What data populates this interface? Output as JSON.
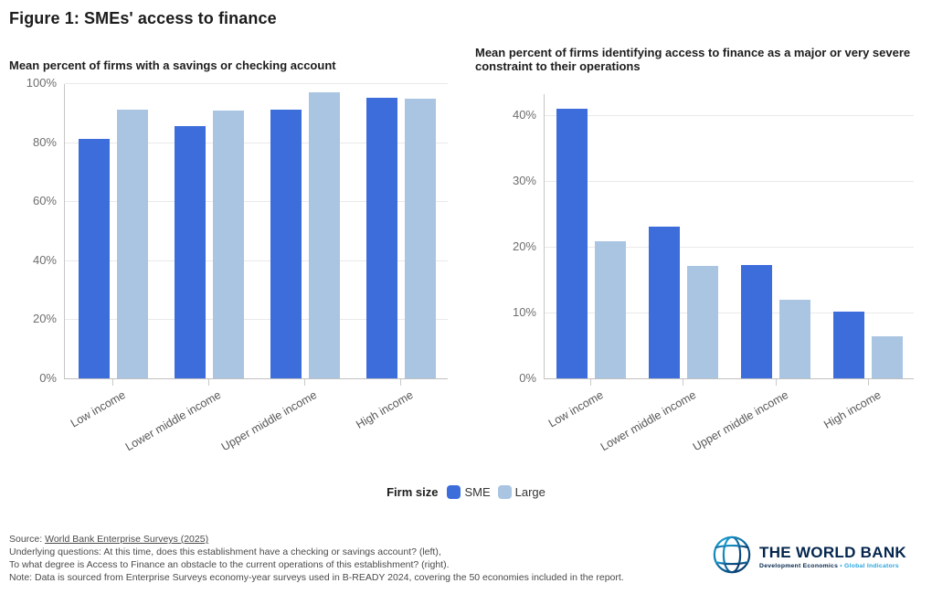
{
  "page": {
    "title": "Figure 1: SMEs' access to finance"
  },
  "legend": {
    "label": "Firm size",
    "items": [
      {
        "name": "SME",
        "color": "#3d6ddb"
      },
      {
        "name": "Large",
        "color": "#a9c5e2"
      }
    ]
  },
  "chart_data": [
    {
      "type": "bar",
      "title": "Mean percent of firms with a savings or checking account",
      "categories": [
        "Low income",
        "Lower middle income",
        "Upper middle income",
        "High income"
      ],
      "series": [
        {
          "name": "SME",
          "color": "#3d6ddb",
          "values": [
            81,
            85.5,
            91,
            95
          ]
        },
        {
          "name": "Large",
          "color": "#a9c5e2",
          "values": [
            91,
            90.8,
            96.8,
            94.7
          ]
        }
      ],
      "xlabel": "",
      "ylabel": "",
      "yticks": [
        0,
        20,
        40,
        60,
        80,
        100
      ],
      "ytick_suffix": "%",
      "ylim": [
        0,
        100
      ],
      "grid": true,
      "legend_position": "bottom"
    },
    {
      "type": "bar",
      "title": "Mean percent of firms identifying access to finance as a major or very severe constraint to their operations",
      "categories": [
        "Low income",
        "Lower middle income",
        "Upper middle income",
        "High income"
      ],
      "series": [
        {
          "name": "SME",
          "color": "#3d6ddb",
          "values": [
            41,
            23,
            17.2,
            10.1
          ]
        },
        {
          "name": "Large",
          "color": "#a9c5e2",
          "values": [
            20.8,
            17.1,
            11.9,
            6.4
          ]
        }
      ],
      "xlabel": "",
      "ylabel": "",
      "yticks": [
        0,
        10,
        20,
        30,
        40
      ],
      "ytick_suffix": "%",
      "ylim": [
        0,
        43.3
      ],
      "grid": true,
      "legend_position": "bottom"
    }
  ],
  "footer": {
    "source_prefix": "Source: ",
    "source_link": "World Bank Enterprise Surveys (2025)",
    "line2": "Underlying questions: At this time, does this establishment have a checking or savings account? (left),",
    "line3": "To what degree is Access to Finance an obstacle to the current operations of this establishment? (right).",
    "line4": "Note: Data is sourced from Enterprise Surveys economy-year surveys used in B-READY 2024, covering the 50 economies included in the report."
  },
  "logo": {
    "name": "THE WORLD BANK",
    "tagline_left": "Development Economics",
    "tagline_sep": "•",
    "tagline_right": "Global Indicators",
    "navy": "#04264d",
    "light_blue": "#29a5df"
  }
}
